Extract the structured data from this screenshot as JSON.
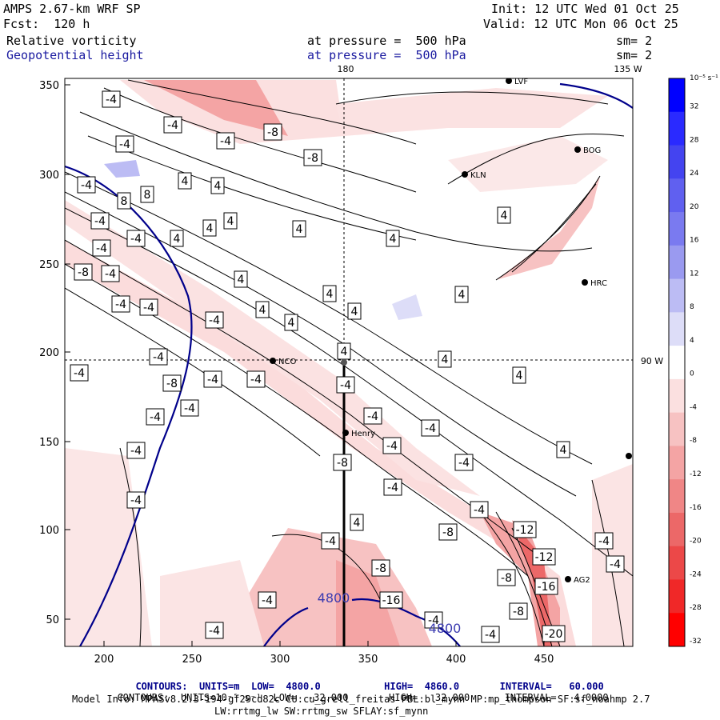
{
  "header": {
    "title": "AMPS 2.67-km WRF SP",
    "forecast": "Fcst:  120 h",
    "init": "Init: 12 UTC Wed 01 Oct 25",
    "valid": "Valid: 12 UTC Mon 06 Oct 25",
    "field1": {
      "name": "Relative vorticity",
      "level": "at pressure =  500 hPa",
      "sm": "sm= 2"
    },
    "field2": {
      "name": "Geopotential height",
      "level": "at pressure =  500 hPa",
      "sm": "sm= 2"
    }
  },
  "map": {
    "lon_top_180": "180",
    "lon_top_135": "135 W",
    "lon_right_90": "90 W",
    "x_ticks": [
      "200",
      "250",
      "300",
      "350",
      "400",
      "450"
    ],
    "y_ticks": [
      "350",
      "300",
      "250",
      "200",
      "150",
      "100",
      "50"
    ],
    "stations": [
      {
        "label": "BOG"
      },
      {
        "label": "KLN"
      },
      {
        "label": "HRC"
      },
      {
        "label": "NCO"
      },
      {
        "label": "Henry"
      },
      {
        "label": "AG2"
      },
      {
        "label": "LVF"
      }
    ],
    "height_labels": [
      "4800",
      "4800"
    ],
    "vort_labels": [
      "-4",
      "-4",
      "-4",
      "-4",
      "-4",
      "-4",
      "-4",
      "-4",
      "-4",
      "-4",
      "-4",
      "-4",
      "-4",
      "-4",
      "-4",
      "-4",
      "-4",
      "-4",
      "-4",
      "-4",
      "-4",
      "-4",
      "-4",
      "-4",
      "-4",
      "-4",
      "-4",
      "-4",
      "-4",
      "-4",
      "-4",
      "-4",
      "-4",
      "-4",
      "-8",
      "-8",
      "-8",
      "-8",
      "-8",
      "-8",
      "-8",
      "-8",
      "-8",
      "-12",
      "-12",
      "-16",
      "-16",
      "-20",
      "4",
      "4",
      "4",
      "4",
      "4",
      "4",
      "4",
      "4",
      "4",
      "4",
      "4",
      "4",
      "4",
      "4",
      "4",
      "4",
      "4",
      "4",
      "4",
      "8",
      "8"
    ]
  },
  "colorbar": {
    "unit": "10⁻⁵ s⁻¹",
    "ticks": [
      "32",
      "28",
      "24",
      "20",
      "16",
      "12",
      "8",
      "4",
      "0",
      "-4",
      "-8",
      "-12",
      "-16",
      "-20",
      "-24",
      "-28",
      "-32"
    ],
    "colors": [
      "#0000ff",
      "#2a2aff",
      "#4444f0",
      "#6060f0",
      "#7a7af0",
      "#9a9af0",
      "#bcbcf4",
      "#ddddf8",
      "#ffffff",
      "#fbe0e0",
      "#f7c2c2",
      "#f4a4a4",
      "#f08686",
      "#ec6868",
      "#ec4848",
      "#f02828",
      "#ff0000"
    ]
  },
  "footer": {
    "line1_label": "CONTOURS:",
    "line1_units": "UNITS=m",
    "line1_low": "LOW=  4800.0",
    "line1_high": "HIGH=  4860.0",
    "line1_interval": "INTERVAL=   60.000",
    "line2_label": "CONTOURS:",
    "line2_units": "UNITS=10⁻⁵ s⁻¹",
    "line2_low": "LOW=  -32.000",
    "line2_high": "HIGH=   32.000",
    "line2_interval": "INTERVAL=   4.0000",
    "info1": "Model Info: MPASv8.2.3-194-gf29cd82c CU:cu_grell_freitas PBL:bl_mynn MP:mp_thompson SF:sf_noahmp 2.7",
    "info2": "LW:rrtmg_lw SW:rrtmg_sw SFLAY:sf_mynn"
  }
}
